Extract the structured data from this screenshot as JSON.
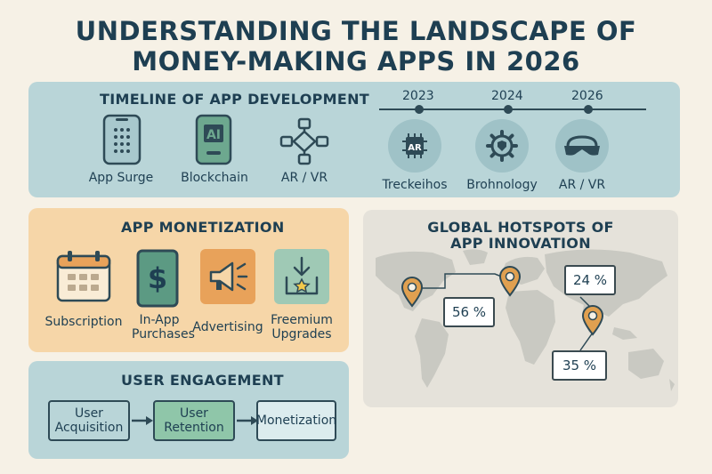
{
  "title": {
    "line1": "UNDERSTANDING THE LANDSCAPE OF",
    "line2": "MONEY-MAKING APPS IN 2026"
  },
  "timeline": {
    "heading": "TIMELINE OF APP DEVELOPMENT",
    "items": [
      {
        "label": "App Surge",
        "icon": "smartphone-icon"
      },
      {
        "label": "Blockchain",
        "icon": "blockchain-chip-icon"
      },
      {
        "label": "AR / VR",
        "icon": "network-nodes-icon"
      }
    ],
    "years": [
      "2023",
      "2024",
      "2026"
    ],
    "milestones": [
      {
        "label": "Treckeihos",
        "icon": "ar-chip-icon",
        "badge": "AR"
      },
      {
        "label": "Brohnology",
        "icon": "gear-shield-icon"
      },
      {
        "label": "AR / VR",
        "icon": "vr-headset-icon"
      }
    ]
  },
  "monetization": {
    "heading": "APP MONETIZATION",
    "items": [
      {
        "label": "Subscription",
        "icon": "calendar-icon"
      },
      {
        "label": "In-App Purchases",
        "icon": "dollar-phone-icon"
      },
      {
        "label": "Advertising",
        "icon": "megaphone-icon"
      },
      {
        "label": "Freemium Upgrades",
        "icon": "download-star-icon"
      }
    ]
  },
  "engagement": {
    "heading": "USER ENGAGEMENT",
    "steps": [
      "User Acquisition",
      "User Retention",
      "Monetization"
    ]
  },
  "hotspots": {
    "heading_line1": "GLOBAL HOTSPOTS OF",
    "heading_line2": "APP INNOVATION",
    "stats": [
      "56 %",
      "24 %",
      "35 %"
    ]
  },
  "colors": {
    "background": "#f6f1e6",
    "panel_teal": "#b9d5d8",
    "panel_orange": "#f6d6a8",
    "ink": "#1e3f52",
    "pin": "#e0a050"
  }
}
